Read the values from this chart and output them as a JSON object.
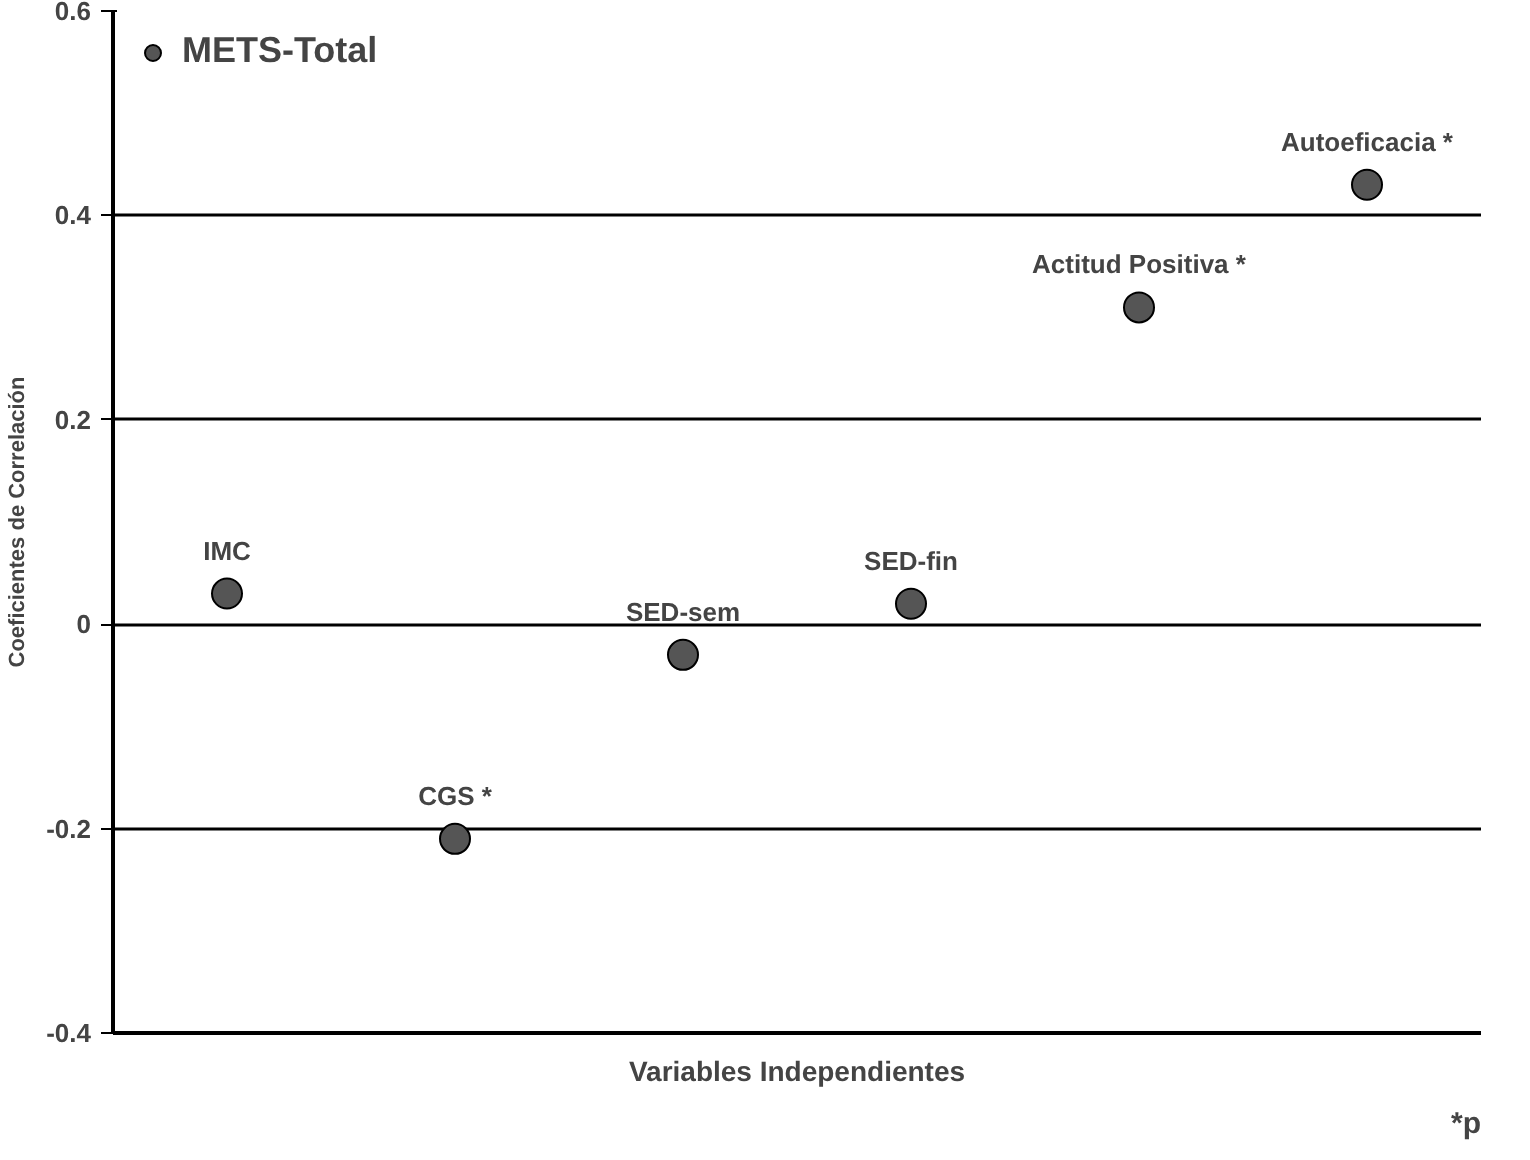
{
  "chart_data": {
    "type": "scatter",
    "xlabel": "Variables Independientes",
    "ylabel": "Coeficientes de Correlación",
    "categories": [
      null,
      null,
      null,
      null,
      null,
      null
    ],
    "series": [
      {
        "name": "METS-Total",
        "color": "#555555",
        "values": [
          0.03,
          -0.21,
          -0.03,
          0.02,
          0.31,
          0.43
        ]
      }
    ],
    "ylim": [
      -0.4,
      0.6
    ],
    "yticks": [
      -0.4,
      -0.2,
      0,
      0.2,
      0.4,
      0.6
    ],
    "grid": "y",
    "legend": "top left",
    "marker": "circle",
    "annotations": [
      {
        "text": "IMC",
        "y": 0.03
      },
      {
        "text": "CGS *",
        "y": -0.21
      },
      {
        "text": "SED-sem",
        "y": -0.03
      },
      {
        "text": "SED-fin",
        "y": 0.02
      },
      {
        "text": "Actitud Positiva *",
        "y": 0.31
      },
      {
        "text": "Autoeficacia *",
        "y": 0.43
      },
      "*p"
    ]
  }
}
